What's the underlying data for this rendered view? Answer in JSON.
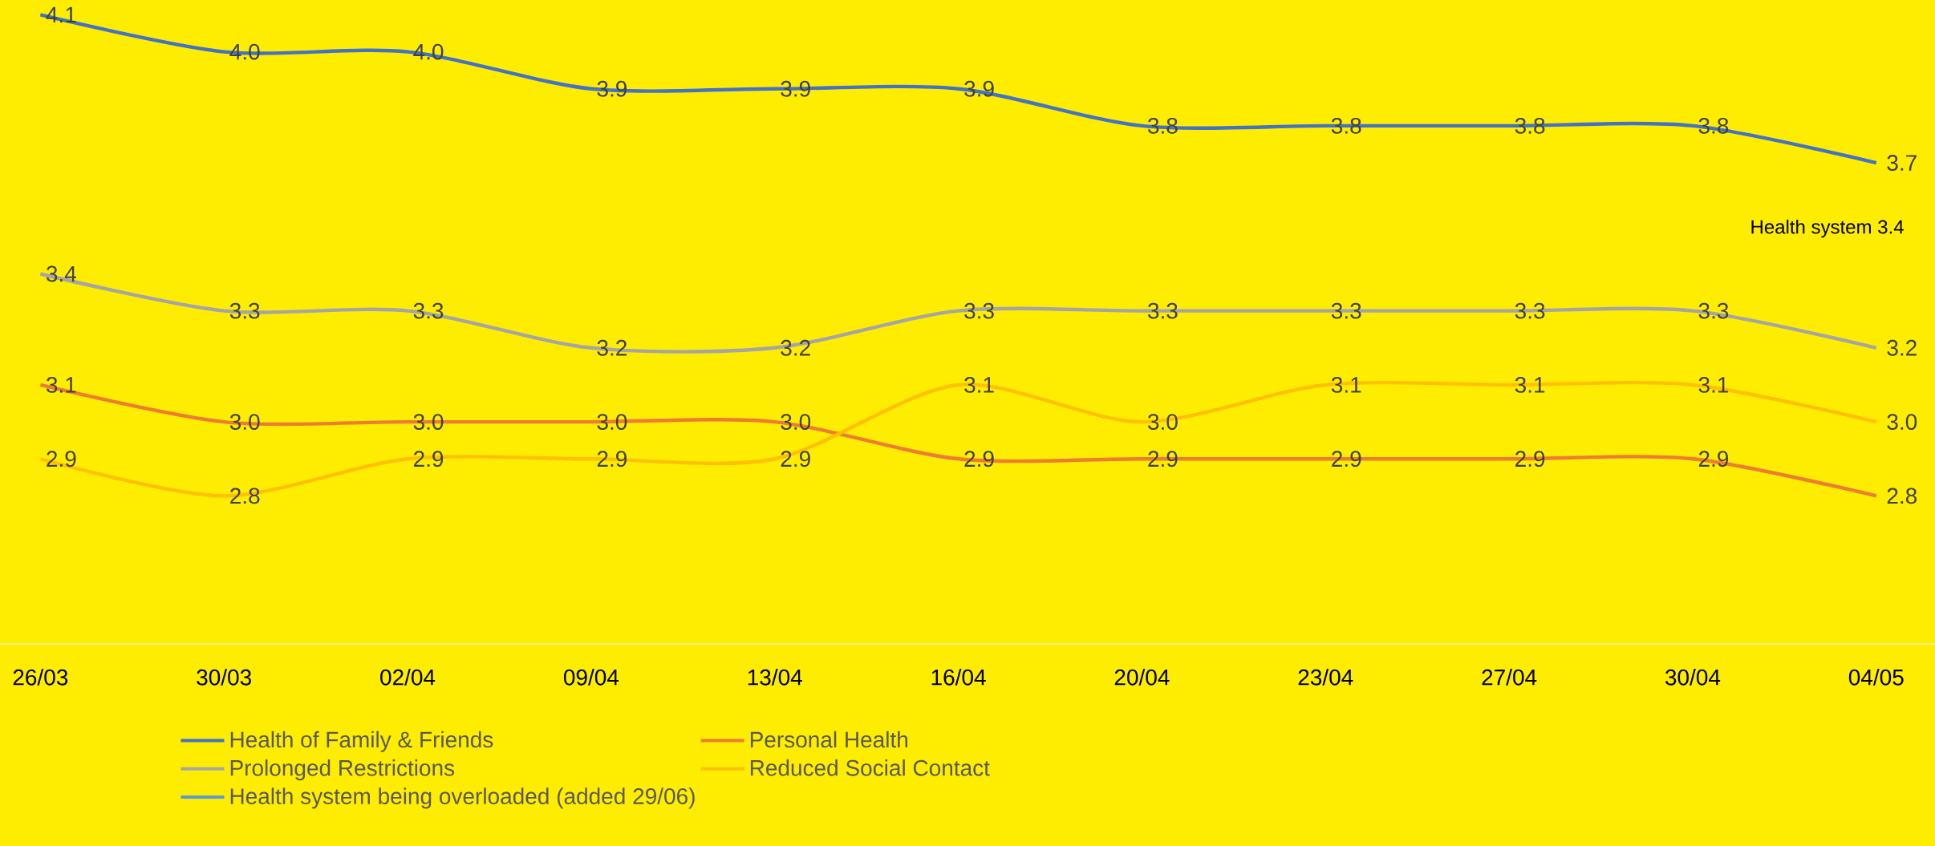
{
  "chart_data": {
    "type": "line",
    "categories": [
      "26/03",
      "30/03",
      "02/04",
      "09/04",
      "13/04",
      "16/04",
      "20/04",
      "23/04",
      "27/04",
      "30/04",
      "04/05"
    ],
    "series": [
      {
        "name": "Health of Family & Friends",
        "color": "#4472c4",
        "values": [
          4.1,
          4.0,
          4.0,
          3.9,
          3.9,
          3.9,
          3.8,
          3.8,
          3.8,
          3.8,
          3.7
        ],
        "value_labels": [
          "4.1",
          "4.0",
          "4.0",
          "3.9",
          "3.9",
          "3.9",
          "3.8",
          "3.8",
          "3.8",
          "3.8",
          "3.7"
        ]
      },
      {
        "name": "Personal Health",
        "color": "#ed7d31",
        "values": [
          3.1,
          3.0,
          3.0,
          3.0,
          3.0,
          2.9,
          2.9,
          2.9,
          2.9,
          2.9,
          2.8
        ],
        "value_labels": [
          "3.1",
          "3.0",
          "3.0",
          "3.0",
          "3.0",
          "2.9",
          "2.9",
          "2.9",
          "2.9",
          "2.9",
          "2.8"
        ]
      },
      {
        "name": "Prolonged Restrictions",
        "color": "#a5a5a5",
        "values": [
          3.4,
          3.3,
          3.3,
          3.2,
          3.2,
          3.3,
          3.3,
          3.3,
          3.3,
          3.3,
          3.2
        ],
        "value_labels": [
          "3.4",
          "3.3",
          "3.3",
          "3.2",
          "3.2",
          "3.3",
          "3.3",
          "3.3",
          "3.3",
          "3.3",
          "3.2"
        ]
      },
      {
        "name": "Reduced Social Contact",
        "color": "#ffc000",
        "values": [
          2.9,
          2.8,
          2.9,
          2.9,
          2.9,
          3.1,
          3.0,
          3.1,
          3.1,
          3.1,
          3.0
        ],
        "value_labels": [
          "2.9",
          "2.8",
          "2.9",
          "2.9",
          "2.9",
          "3.1",
          "3.0",
          "3.1",
          "3.1",
          "3.1",
          "3.0"
        ]
      },
      {
        "name": "Health system being overloaded (added 29/06)",
        "color": "#5b9bd5",
        "values": [
          null,
          null,
          null,
          null,
          null,
          null,
          null,
          null,
          null,
          null,
          null
        ]
      }
    ],
    "ylim": [
      2.4,
      4.14
    ],
    "annotations": [
      "Health system 3.4"
    ],
    "legend": "bottom",
    "grid": false,
    "marker": "none",
    "line_style": "solid"
  }
}
